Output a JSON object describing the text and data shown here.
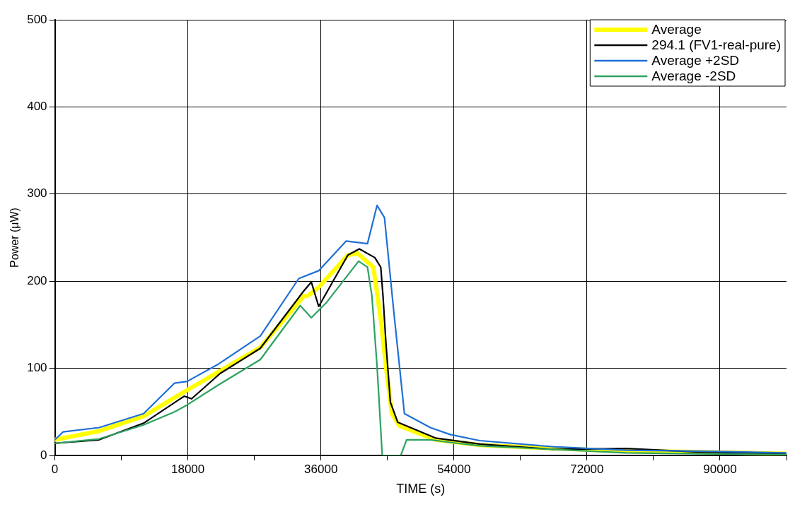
{
  "chart_data": {
    "type": "line",
    "xlabel": "TIME (s)",
    "ylabel": "Power (μW)",
    "xlim": [
      0,
      99000
    ],
    "ylim": [
      0,
      500
    ],
    "xticks": [
      0,
      {
        "value": 9000,
        "label": null
      },
      18000,
      {
        "value": 27000,
        "label": null
      },
      36000,
      {
        "value": 45000,
        "label": null
      },
      54000,
      {
        "value": 63000,
        "label": null
      },
      72000,
      {
        "value": 81000,
        "label": null
      },
      90000,
      {
        "value": 99000,
        "label": null
      }
    ],
    "yticks": [
      0,
      100,
      200,
      300,
      400,
      500
    ],
    "grid": true,
    "legend": "top right",
    "marker": "none",
    "line_style": "solid",
    "series": [
      {
        "name": "Average",
        "color": "#ffff00",
        "x": [
          0,
          6000,
          12000,
          17900,
          22350,
          27800,
          33700,
          34200,
          35700,
          39650,
          40950,
          43100,
          44100,
          44800,
          45600,
          46600,
          51500,
          57500,
          67400,
          77300,
          87100,
          99000
        ],
        "values": [
          18,
          28,
          45,
          75,
          97,
          124,
          183,
          183,
          193,
          230,
          232,
          216,
          156,
          102,
          48,
          34,
          18,
          12,
          8,
          5,
          4,
          2
        ]
      },
      {
        "name": "294.1 (FV1-real-pure)",
        "color": "#000000",
        "x": [
          0,
          6000,
          12000,
          17500,
          18500,
          22350,
          27800,
          33700,
          34700,
          35700,
          39650,
          41200,
          43300,
          44100,
          44400,
          44800,
          45400,
          46400,
          51500,
          57500,
          67400,
          77300,
          87100,
          99000
        ],
        "values": [
          14,
          18,
          37,
          68,
          65,
          94,
          123,
          189,
          199,
          171,
          230,
          237,
          227,
          216,
          183,
          129,
          61,
          38,
          20,
          13,
          7,
          8,
          4,
          2
        ]
      },
      {
        "name": "Average +2SD",
        "color": "#1f6fd6",
        "x": [
          0,
          1100,
          6000,
          12000,
          16200,
          17900,
          22150,
          27800,
          33000,
          35700,
          39400,
          42300,
          43600,
          44600,
          45800,
          47300,
          50800,
          53500,
          57500,
          67400,
          77300,
          87100,
          99000
        ],
        "values": [
          18,
          27,
          32,
          48,
          83,
          85,
          105,
          137,
          203,
          212,
          246,
          243,
          287,
          273,
          170,
          48,
          32,
          24,
          17,
          10,
          6,
          5,
          3
        ]
      },
      {
        "name": "Average -2SD",
        "color": "#2ca25f",
        "x": [
          0,
          6000,
          12000,
          16200,
          17900,
          22150,
          27800,
          33200,
          34700,
          36700,
          41100,
          42300,
          42900,
          43600,
          44300,
          46800,
          47600,
          50800,
          53500,
          57500,
          67400,
          77300,
          87100,
          99000
        ],
        "values": [
          14,
          19,
          35,
          50,
          58,
          81,
          110,
          172,
          158,
          175,
          223,
          216,
          183,
          102,
          0,
          0,
          18,
          18,
          15,
          11,
          7,
          3,
          2,
          1
        ]
      }
    ]
  }
}
